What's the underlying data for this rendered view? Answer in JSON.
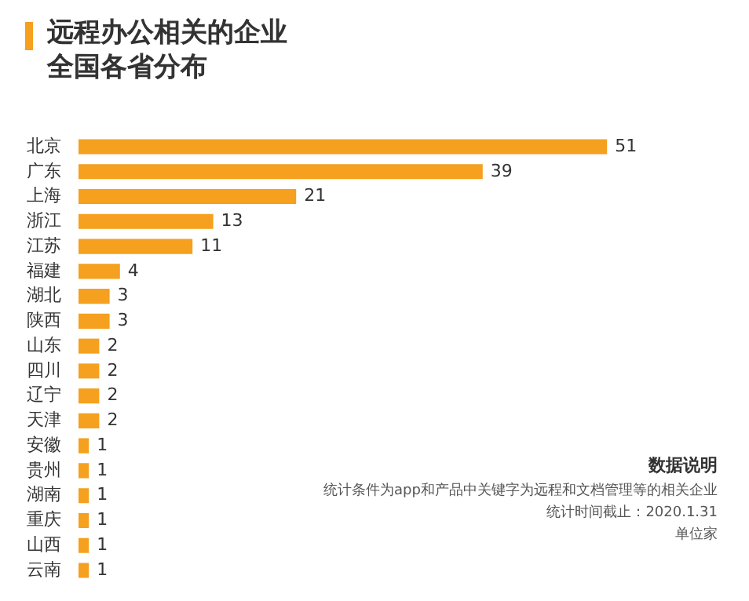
{
  "chart_data": {
    "type": "bar",
    "orientation": "horizontal",
    "title": "远程办公相关的企业全国各省分布",
    "categories": [
      "北京",
      "广东",
      "上海",
      "浙江",
      "江苏",
      "福建",
      "湖北",
      "陕西",
      "山东",
      "四川",
      "辽宁",
      "天津",
      "安徽",
      "贵州",
      "湖南",
      "重庆",
      "山西",
      "云南"
    ],
    "values": [
      51,
      39,
      21,
      13,
      11,
      4,
      3,
      3,
      2,
      2,
      2,
      2,
      1,
      1,
      1,
      1,
      1,
      1
    ],
    "color": "#f5a01e",
    "data_labels": true,
    "grid": false,
    "legend": false,
    "annotations": [
      "数据说明",
      "统计条件为app和产品中关键字为远程和文档管理等的相关企业",
      "统计时间截止：2020.1.31",
      "单位家"
    ]
  }
}
